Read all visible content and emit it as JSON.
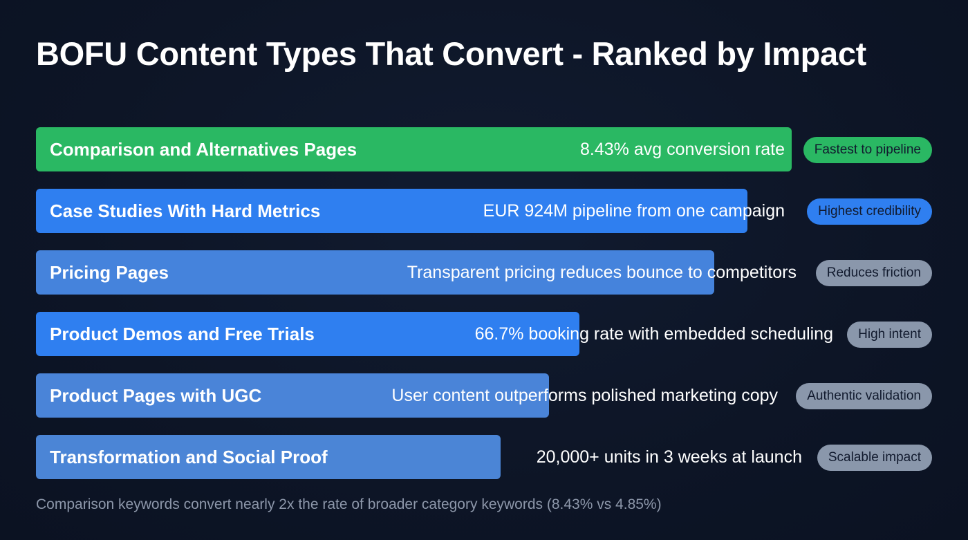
{
  "title": "BOFU Content Types That Convert - Ranked by Impact",
  "footnote": "Comparison keywords convert nearly 2x the rate of broader category keywords (8.43% vs 4.85%)",
  "rows": [
    {
      "label": "Comparison and Alternatives Pages",
      "metric": "8.43% avg conversion rate",
      "badge": "Fastest to pipeline",
      "bar_color": "#2ab863",
      "badge_color": "#2ab863",
      "bar_end": 1145,
      "metric_right": 1135
    },
    {
      "label": "Case Studies With Hard Metrics",
      "metric": "EUR 924M pipeline from one campaign",
      "badge": "Highest credibility",
      "bar_color": "#2f7ff0",
      "badge_color": "#2f7ff0",
      "bar_end": 1081,
      "metric_right": 1135
    },
    {
      "label": "Pricing Pages",
      "metric": "Transparent pricing reduces bounce to competitors",
      "badge": "Reduces friction",
      "bar_color": "#4583dc",
      "badge_color": "#8a97ab",
      "bar_end": 1033,
      "metric_right": 1152
    },
    {
      "label": "Product Demos and Free Trials",
      "metric": "66.7% booking rate with embedded scheduling",
      "badge": "High intent",
      "bar_color": "#2f7ff0",
      "badge_color": "#8a97ab",
      "bar_end": 838,
      "metric_right": 1205
    },
    {
      "label": "Product Pages with UGC",
      "metric": "User content outperforms polished marketing copy",
      "badge": "Authentic validation",
      "bar_color": "#4a84d8",
      "badge_color": "#8a97ab",
      "bar_end": 794,
      "metric_right": 1125
    },
    {
      "label": "Transformation and Social Proof",
      "metric": "20,000+ units in 3 weeks at launch",
      "badge": "Scalable impact",
      "bar_color": "#4b85d6",
      "badge_color": "#8a97ab",
      "bar_end": 724,
      "metric_right": 1160
    }
  ],
  "chart_data": {
    "type": "bar",
    "orientation": "horizontal",
    "title": "BOFU Content Types That Convert - Ranked by Impact",
    "categories": [
      "Comparison and Alternatives Pages",
      "Case Studies With Hard Metrics",
      "Pricing Pages",
      "Product Demos and Free Trials",
      "Product Pages with UGC",
      "Transformation and Social Proof"
    ],
    "values": [
      100,
      94,
      90,
      72,
      68,
      61
    ],
    "value_unit": "relative impact rank (bar length, % of max)",
    "annotations": [
      "8.43% avg conversion rate",
      "EUR 924M pipeline from one campaign",
      "Transparent pricing reduces bounce to competitors",
      "66.7% booking rate with embedded scheduling",
      "User content outperforms polished marketing copy",
      "20,000+ units in 3 weeks at launch"
    ],
    "badges": [
      "Fastest to pipeline",
      "Highest credibility",
      "Reduces friction",
      "High intent",
      "Authentic validation",
      "Scalable impact"
    ],
    "footnote": "Comparison keywords convert nearly 2x the rate of broader category keywords (8.43% vs 4.85%)",
    "xlabel": "",
    "ylabel": "",
    "grid": false,
    "legend": "none"
  }
}
